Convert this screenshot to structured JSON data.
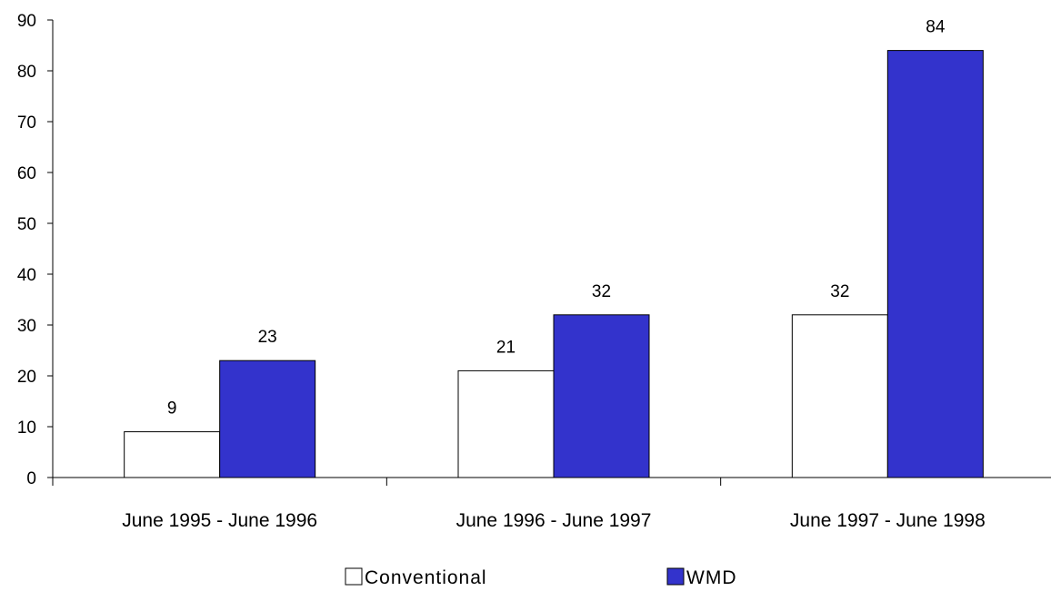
{
  "chart_data": {
    "type": "bar",
    "categories": [
      "June 1995 - June 1996",
      "June 1996 - June 1997",
      "June 1997 - June 1998"
    ],
    "series": [
      {
        "name": "Conventional",
        "values": [
          9,
          21,
          32
        ],
        "color": "#ffffff"
      },
      {
        "name": "WMD",
        "values": [
          23,
          32,
          84
        ],
        "color": "#3333cc"
      }
    ],
    "ylim": [
      0,
      90
    ],
    "yticks": [
      0,
      10,
      20,
      30,
      40,
      50,
      60,
      70,
      80,
      90
    ],
    "grid": false,
    "legend_position": "bottom",
    "data_labels": true
  }
}
